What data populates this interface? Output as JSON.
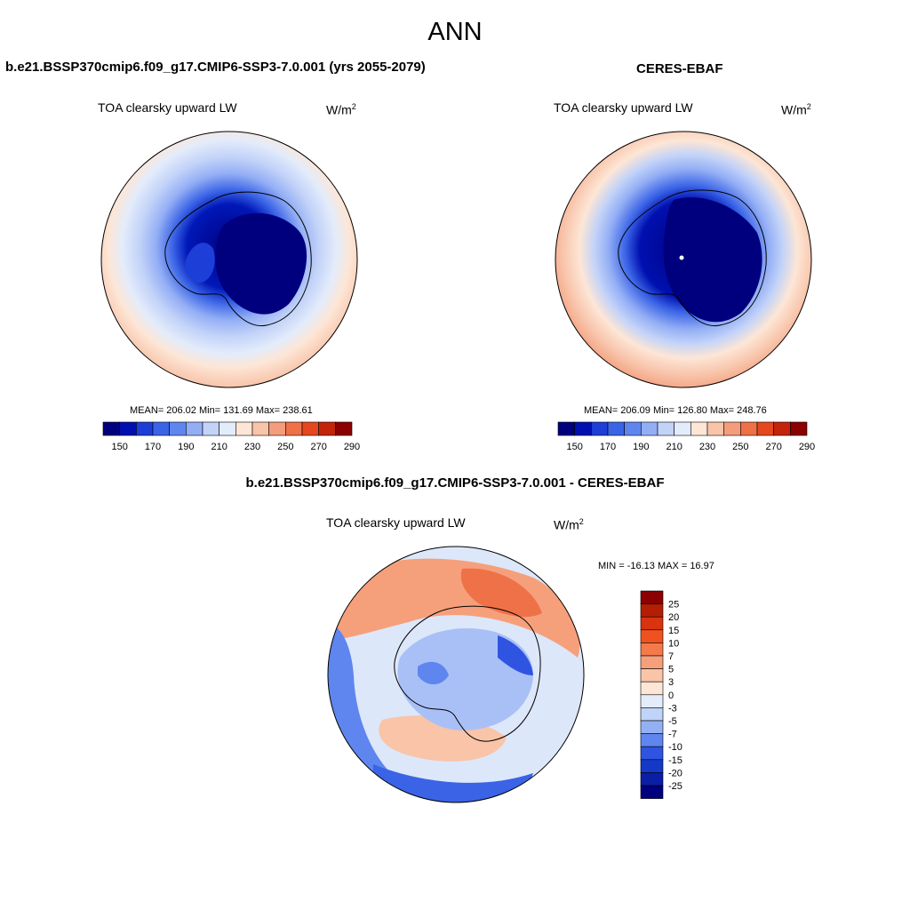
{
  "main_title": "ANN",
  "panels": [
    {
      "title": "b.e21.BSSP370cmip6.f09_g17.CMIP6-SSP3-7.0.001 (yrs 2055-2079)",
      "field": "TOA clearsky upward LW",
      "units": "W/m",
      "units_sup": "2",
      "stats": "MEAN= 206.02  Min= 131.69  Max= 238.61",
      "colorbar_ticks": [
        "150",
        "170",
        "190",
        "210",
        "230",
        "250",
        "270",
        "290"
      ]
    },
    {
      "title": "CERES-EBAF",
      "field": "TOA clearsky upward LW",
      "units": "W/m",
      "units_sup": "2",
      "stats": "MEAN= 206.09  Min= 126.80  Max= 248.76",
      "colorbar_ticks": [
        "150",
        "170",
        "190",
        "210",
        "230",
        "250",
        "270",
        "290"
      ]
    },
    {
      "title": "b.e21.BSSP370cmip6.f09_g17.CMIP6-SSP3-7.0.001 - CERES-EBAF",
      "field": "TOA clearsky upward LW",
      "units": "W/m",
      "units_sup": "2",
      "stats": "MIN = -16.13 MAX =  16.97",
      "colorbar_ticks": [
        "25",
        "20",
        "15",
        "10",
        "7",
        "5",
        "3",
        "0",
        "-3",
        "-5",
        "-7",
        "-10",
        "-15",
        "-20",
        "-25"
      ]
    }
  ],
  "colors": {
    "seq": [
      "#00007f",
      "#0010b0",
      "#1e3ed8",
      "#3a63e6",
      "#5f86ef",
      "#93aef5",
      "#c3d3f8",
      "#e3ecfb",
      "#fde6d6",
      "#f8c4aa",
      "#f49d7c",
      "#ef7148",
      "#e5481f",
      "#c3240a",
      "#8b0000"
    ],
    "diff": [
      "#8b0000",
      "#b41e04",
      "#d9330f",
      "#f0521f",
      "#f47a4a",
      "#f6a07b",
      "#f9c4a8",
      "#fde6d6",
      "#e3ecfb",
      "#c0d3f8",
      "#94b0f5",
      "#5f86ef",
      "#2f54e2",
      "#1438c8",
      "#0a1fa5",
      "#00007f"
    ]
  }
}
